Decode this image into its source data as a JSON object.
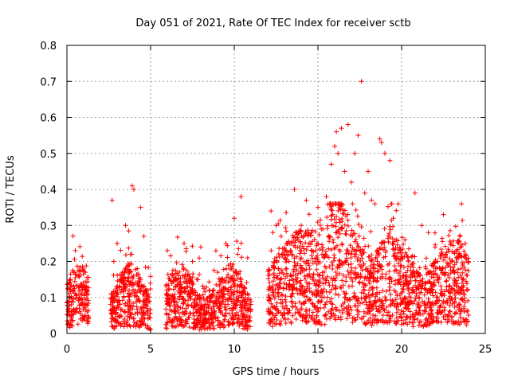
{
  "chart_data": {
    "type": "scatter",
    "title": "Day 051 of 2021, Rate Of TEC Index for receiver sctb",
    "xlabel": "GPS time / hours",
    "ylabel": "ROTI / TECUs",
    "xlim": [
      0,
      25
    ],
    "ylim": [
      0,
      0.8
    ],
    "x_ticks": [
      0,
      5,
      10,
      15,
      20,
      25
    ],
    "x_tick_labels": [
      "0",
      "5",
      "10",
      "15",
      "20",
      "25"
    ],
    "y_ticks": [
      0,
      0.1,
      0.2,
      0.3,
      0.4,
      0.5,
      0.6,
      0.7,
      0.8
    ],
    "y_tick_labels": [
      "0",
      "0.1",
      "0.2",
      "0.3",
      "0.4",
      "0.5",
      "0.6",
      "0.7",
      "0.8"
    ],
    "grid": true,
    "marker": "+",
    "marker_color": "#ff0000",
    "coverage_hours": [
      [
        0.0,
        1.3
      ],
      [
        2.6,
        5.0
      ],
      [
        5.9,
        11.0
      ],
      [
        12.0,
        24.0
      ]
    ],
    "series": [
      {
        "name": "ROTI",
        "points": [
          [
            0.1,
            0.05
          ],
          [
            0.2,
            0.15
          ],
          [
            0.3,
            0.09
          ],
          [
            0.4,
            0.12
          ],
          [
            0.5,
            0.23
          ],
          [
            0.6,
            0.07
          ],
          [
            0.7,
            0.16
          ],
          [
            0.8,
            0.04
          ],
          [
            0.9,
            0.13
          ],
          [
            1.0,
            0.08
          ],
          [
            1.1,
            0.17
          ],
          [
            1.2,
            0.06
          ],
          [
            2.7,
            0.37
          ],
          [
            2.8,
            0.2
          ],
          [
            3.0,
            0.25
          ],
          [
            3.2,
            0.15
          ],
          [
            3.5,
            0.3
          ],
          [
            3.8,
            0.22
          ],
          [
            3.9,
            0.41
          ],
          [
            4.0,
            0.4
          ],
          [
            4.2,
            0.18
          ],
          [
            4.4,
            0.35
          ],
          [
            4.6,
            0.27
          ],
          [
            4.8,
            0.12
          ],
          [
            6.0,
            0.23
          ],
          [
            6.5,
            0.15
          ],
          [
            7.0,
            0.25
          ],
          [
            7.5,
            0.2
          ],
          [
            8.0,
            0.24
          ],
          [
            8.5,
            0.12
          ],
          [
            9.0,
            0.17
          ],
          [
            9.5,
            0.25
          ],
          [
            10.0,
            0.32
          ],
          [
            10.2,
            0.22
          ],
          [
            10.4,
            0.38
          ],
          [
            10.8,
            0.21
          ],
          [
            12.2,
            0.34
          ],
          [
            12.5,
            0.3
          ],
          [
            12.8,
            0.27
          ],
          [
            13.2,
            0.25
          ],
          [
            13.6,
            0.4
          ],
          [
            14.0,
            0.3
          ],
          [
            14.3,
            0.37
          ],
          [
            14.6,
            0.28
          ],
          [
            15.0,
            0.35
          ],
          [
            15.2,
            0.29
          ],
          [
            15.5,
            0.38
          ],
          [
            15.8,
            0.47
          ],
          [
            16.0,
            0.52
          ],
          [
            16.1,
            0.56
          ],
          [
            16.2,
            0.5
          ],
          [
            16.4,
            0.57
          ],
          [
            16.6,
            0.45
          ],
          [
            16.8,
            0.58
          ],
          [
            17.0,
            0.42
          ],
          [
            17.2,
            0.5
          ],
          [
            17.4,
            0.55
          ],
          [
            17.6,
            0.7
          ],
          [
            17.8,
            0.39
          ],
          [
            18.0,
            0.45
          ],
          [
            18.2,
            0.37
          ],
          [
            18.4,
            0.36
          ],
          [
            18.7,
            0.54
          ],
          [
            18.8,
            0.53
          ],
          [
            19.0,
            0.5
          ],
          [
            19.3,
            0.48
          ],
          [
            19.5,
            0.32
          ],
          [
            19.8,
            0.36
          ],
          [
            20.2,
            0.26
          ],
          [
            20.8,
            0.39
          ],
          [
            21.2,
            0.3
          ],
          [
            21.6,
            0.28
          ],
          [
            22.0,
            0.24
          ],
          [
            22.5,
            0.33
          ],
          [
            23.0,
            0.2
          ],
          [
            23.5,
            0.27
          ],
          [
            23.8,
            0.25
          ]
        ]
      }
    ]
  }
}
